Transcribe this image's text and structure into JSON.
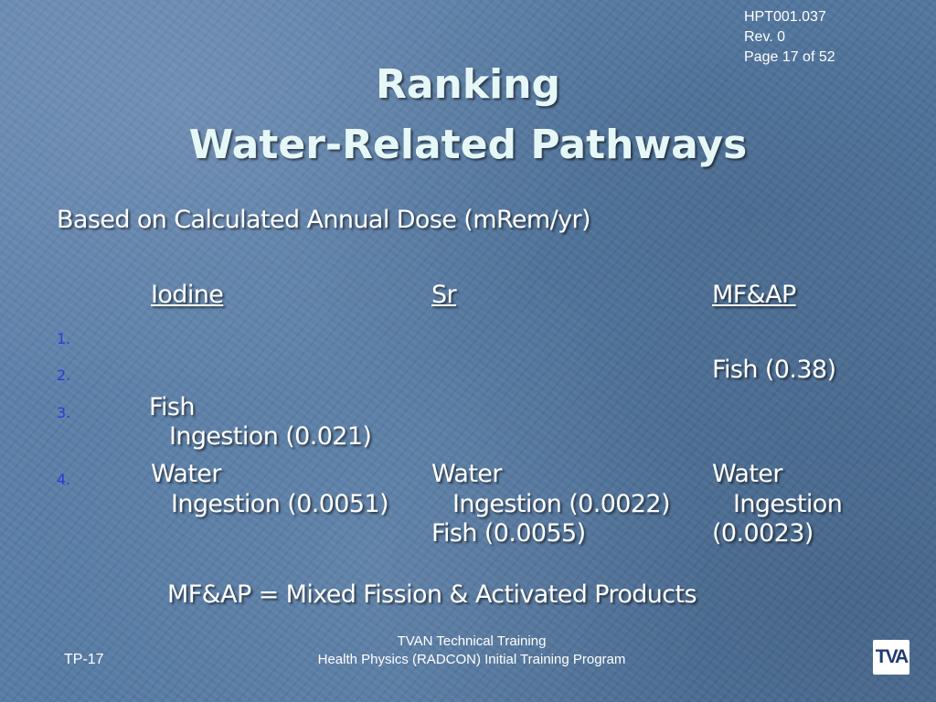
{
  "colors": {
    "background": "#5a7fa9",
    "title_text": "#e6f7f8",
    "body_text": "#ffffff",
    "list_number": "#2a3cd6",
    "logo_bg": "#ffffff",
    "logo_text": "#1f3b72"
  },
  "doc_ref": {
    "id": "HPT001.037",
    "rev": "Rev. 0",
    "page": "Page 17 of 52"
  },
  "title": {
    "line1": "Ranking",
    "line2": "Water-Related Pathways"
  },
  "subtitle": "Based on Calculated Annual Dose (mRem/yr)",
  "columns": {
    "iodine": {
      "header": "Iodine",
      "row3": [
        "Fish",
        "Ingestion (0.021)"
      ],
      "row4": [
        "Water",
        "Ingestion (0.0051)"
      ]
    },
    "sr": {
      "header": "Sr",
      "row4": [
        "Water",
        "Ingestion (0.0022)",
        "Fish (0.0055)"
      ]
    },
    "mfap": {
      "header": "MF&AP",
      "row2": "Fish (0.38)",
      "row4": [
        "Water",
        "Ingestion",
        "(0.0023)"
      ]
    }
  },
  "list_numbers": [
    "1.",
    "2.",
    "3.",
    "4."
  ],
  "footnote": "MF&AP = Mixed Fission & Activated Products",
  "footer": {
    "line1": "TVAN Technical Training",
    "line2": "Health Physics (RADCON) Initial Training Program",
    "slide_number": "TP-17",
    "logo_text": "TVA"
  }
}
